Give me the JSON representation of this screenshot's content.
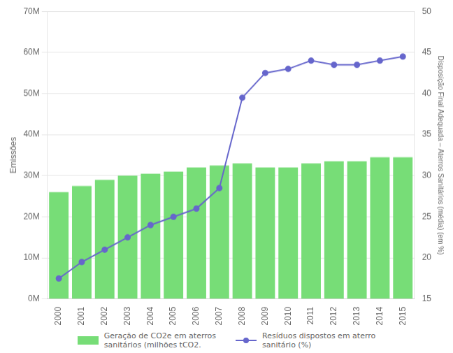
{
  "chart_data": {
    "type": "bar",
    "categories": [
      "2000",
      "2001",
      "2002",
      "2003",
      "2004",
      "2005",
      "2006",
      "2007",
      "2008",
      "2009",
      "2010",
      "2011",
      "2012",
      "2013",
      "2014",
      "2015"
    ],
    "series": [
      {
        "name": "Geração de CO2e em aterros\nsanitários (milhões tCO2.",
        "type": "bar",
        "color": "#77dd77",
        "axis": "y",
        "values": [
          26,
          27.5,
          29,
          30,
          30.5,
          31,
          32,
          32.5,
          33,
          32,
          32,
          33,
          33.5,
          33.5,
          34.5,
          34.5
        ]
      },
      {
        "name": "Resíduos dispostos em aterro\nsanitário (%)",
        "type": "line",
        "color": "#6666cc",
        "axis": "y2",
        "marker": "circle",
        "line_style": "solid",
        "values": [
          17.5,
          19.5,
          21,
          22.5,
          24,
          25,
          26,
          28.5,
          39.5,
          42.5,
          43,
          44,
          43.5,
          43.5,
          44,
          44.5
        ]
      }
    ],
    "ylabel": "Emissões",
    "y2label": "Disposição Final Adequada – Aterros Sanitários (média) (em %)",
    "ylim": [
      0,
      70
    ],
    "yticks": [
      {
        "value": 0,
        "label": "0M"
      },
      {
        "value": 10,
        "label": "10M"
      },
      {
        "value": 20,
        "label": "20M"
      },
      {
        "value": 30,
        "label": "30M"
      },
      {
        "value": 40,
        "label": "40M"
      },
      {
        "value": 50,
        "label": "50M"
      },
      {
        "value": 60,
        "label": "60M"
      },
      {
        "value": 70,
        "label": "70M"
      }
    ],
    "y2lim": [
      15,
      50
    ],
    "y2ticks": [
      15,
      20,
      25,
      30,
      35,
      40,
      45,
      50
    ],
    "grid": true,
    "legend": "bottom"
  }
}
